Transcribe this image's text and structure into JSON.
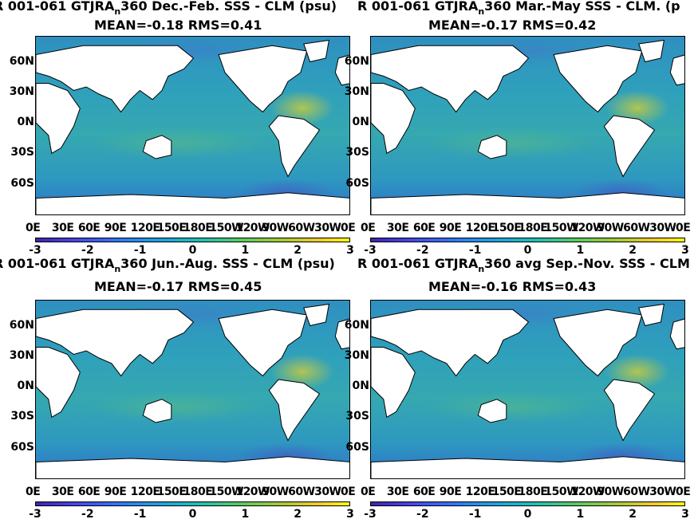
{
  "chart_data": [
    {
      "type": "heatmap",
      "title_prefix": "R 001-061 GTJRA",
      "title_sub": "n",
      "title_suffix": "360  Dec.-Feb. SSS - CLM (psu)",
      "subtitle": "MEAN=-0.18   RMS=0.41",
      "mean": -0.18,
      "rms": 0.41,
      "lat_ticks": [
        "60N",
        "30N",
        "0N",
        "30S",
        "60S"
      ],
      "lon_ticks": [
        "0E",
        "30E",
        "60E",
        "90E",
        "120E",
        "150E",
        "180E",
        "150W",
        "120W",
        "90W",
        "60W",
        "30W",
        "0E"
      ],
      "colorbar_ticks": [
        "-3",
        "-2",
        "-1",
        "0",
        "1",
        "2",
        "3"
      ],
      "clim": [
        -3,
        3
      ]
    },
    {
      "type": "heatmap",
      "title_prefix": "R 001-061 GTJRA",
      "title_sub": "n",
      "title_suffix": "360 Mar.-May SSS - CLM. (p",
      "subtitle": "MEAN=-0.17   RMS=0.42",
      "mean": -0.17,
      "rms": 0.42,
      "lat_ticks": [
        "60N",
        "30N",
        "0N",
        "30S",
        "60S"
      ],
      "lon_ticks": [
        "0E",
        "30E",
        "60E",
        "90E",
        "120E",
        "150E",
        "180E",
        "150W",
        "120W",
        "90W",
        "60W",
        "30W",
        "0E"
      ],
      "colorbar_ticks": [
        "-3",
        "-2",
        "-1",
        "0",
        "1",
        "2",
        "3"
      ],
      "clim": [
        -3,
        3
      ]
    },
    {
      "type": "heatmap",
      "title_prefix": "R 001-061 GTJRA",
      "title_sub": "n",
      "title_suffix": "360 Jun.-Aug. SSS - CLM (psu)",
      "subtitle": "MEAN=-0.17   RMS=0.45",
      "mean": -0.17,
      "rms": 0.45,
      "lat_ticks": [
        "60N",
        "30N",
        "0N",
        "30S",
        "60S"
      ],
      "lon_ticks": [
        "0E",
        "30E",
        "60E",
        "90E",
        "120E",
        "150E",
        "180E",
        "150W",
        "120W",
        "90W",
        "60W",
        "30W",
        "0E"
      ],
      "colorbar_ticks": [
        "-3",
        "-2",
        "-1",
        "0",
        "1",
        "2",
        "3"
      ],
      "clim": [
        -3,
        3
      ]
    },
    {
      "type": "heatmap",
      "title_prefix": "R 001-061 GTJRA",
      "title_sub": "n",
      "title_suffix": "360 avg Sep.-Nov. SSS - CLM",
      "subtitle": "MEAN=-0.16   RMS=0.43",
      "mean": -0.16,
      "rms": 0.43,
      "lat_ticks": [
        "60N",
        "30N",
        "0N",
        "30S",
        "60S"
      ],
      "lon_ticks": [
        "0E",
        "30E",
        "60E",
        "90E",
        "120E",
        "150E",
        "180E",
        "150W",
        "120W",
        "90W",
        "60W",
        "30W",
        "0E"
      ],
      "colorbar_ticks": [
        "-3",
        "-2",
        "-1",
        "0",
        "1",
        "2",
        "3"
      ],
      "clim": [
        -3,
        3
      ]
    }
  ]
}
